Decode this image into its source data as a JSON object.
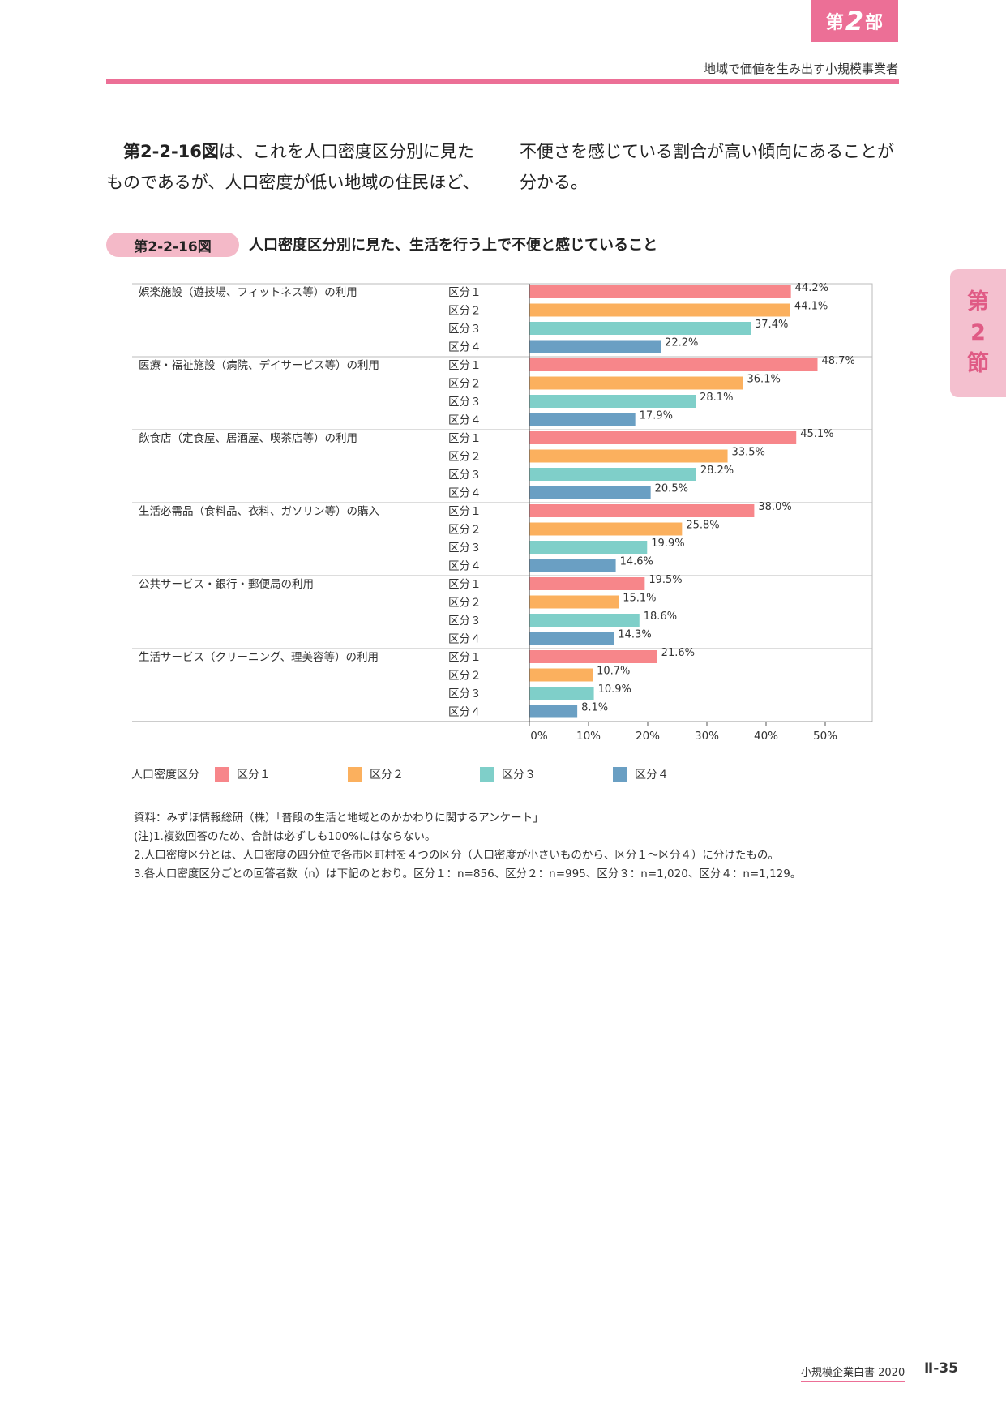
{
  "header": {
    "part_tab": {
      "prefix": "第",
      "number": "2",
      "suffix": "部"
    },
    "subtitle": "地域で価値を生み出す小規模事業者",
    "section_tab": [
      "第",
      "2",
      "節"
    ]
  },
  "body": {
    "left": {
      "ref": "第2-2-16図",
      "line1_rest": "は、これを人口密度区分別に見た",
      "line2": "ものであるが、人口密度が低い地域の住民ほど、"
    },
    "right": {
      "line1": "不便さを感じている割合が高い傾向にあることが",
      "line2": "分かる。"
    }
  },
  "figure": {
    "label": "第2-2-16図",
    "title": "人口密度区分別に見た、生活を行う上で不便と感じていること"
  },
  "chart_data": {
    "type": "bar",
    "orientation": "horizontal",
    "categories": [
      "娯楽施設（遊技場、フィットネス等）の利用",
      "医療・福祉施設（病院、デイサービス等）の利用",
      "飲食店（定食屋、居酒屋、喫茶店等）の利用",
      "生活必需品（食料品、衣料、ガソリン等）の購入",
      "公共サービス・銀行・郵便局の利用",
      "生活サービス（クリーニング、理美容等）の利用"
    ],
    "series": [
      {
        "name": "区分１",
        "color": "#f7868a",
        "values": [
          44.2,
          48.7,
          45.1,
          38.0,
          19.5,
          21.6
        ]
      },
      {
        "name": "区分２",
        "color": "#fbb05e",
        "values": [
          44.1,
          36.1,
          33.5,
          25.8,
          15.1,
          10.7
        ]
      },
      {
        "name": "区分３",
        "color": "#7fcfc9",
        "values": [
          37.4,
          28.1,
          28.2,
          19.9,
          18.6,
          10.9
        ]
      },
      {
        "name": "区分４",
        "color": "#6a9fc3",
        "values": [
          22.2,
          17.9,
          20.5,
          14.6,
          14.3,
          8.1
        ]
      }
    ],
    "value_labels": [
      [
        "44.2%",
        "44.1%",
        "37.4%",
        "22.2%"
      ],
      [
        "48.7%",
        "36.1%",
        "28.1%",
        "17.9%"
      ],
      [
        "45.1%",
        "33.5%",
        "28.2%",
        "20.5%"
      ],
      [
        "38.0%",
        "25.8%",
        "19.9%",
        "14.6%"
      ],
      [
        "19.5%",
        "15.1%",
        "18.6%",
        "14.3%"
      ],
      [
        "21.6%",
        "10.7%",
        "10.9%",
        "8.1%"
      ]
    ],
    "xlim": [
      0,
      58
    ],
    "xticks": [
      "0%",
      "10%",
      "20%",
      "30%",
      "40%",
      "50%"
    ],
    "legend_title": "人口密度区分",
    "legend_position": "bottom"
  },
  "notes": [
    "資料：みずほ情報総研（株）「普段の生活と地域とのかかわりに関するアンケート」",
    "(注)1.複数回答のため、合計は必ずしも100%にはならない。",
    "2.人口密度区分とは、人口密度の四分位で各市区町村を４つの区分（人口密度が小さいものから、区分１～区分４）に分けたもの。",
    "3.各人口密度区分ごとの回答者数（n）は下記のとおり。区分１：n=856、区分２：n=995、区分３：n=1,020、区分４：n=1,129。"
  ],
  "footer": {
    "title": "小規模企業白書 2020",
    "page": "Ⅱ-35"
  }
}
